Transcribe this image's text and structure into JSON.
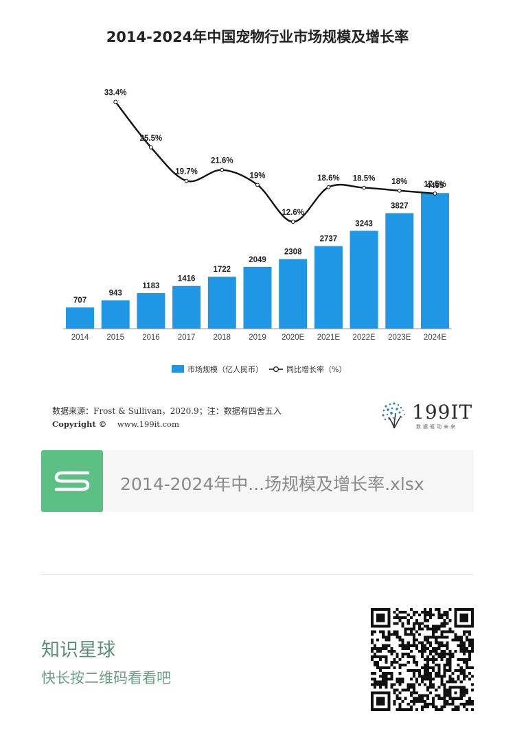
{
  "chart_data": {
    "type": "bar",
    "title": "2014-2024年中国宠物行业市场规模及增长率",
    "categories": [
      "2014",
      "2015",
      "2016",
      "2017",
      "2018",
      "2019",
      "2020E",
      "2021E",
      "2022E",
      "2023E",
      "2024E"
    ],
    "series": [
      {
        "name": "市场规模（亿人民币）",
        "type": "bar",
        "values": [
          707,
          943,
          1183,
          1416,
          1722,
          2049,
          2308,
          2737,
          3243,
          3827,
          4495
        ],
        "color": "#1f97e4"
      },
      {
        "name": "同比增长率（%）",
        "type": "line",
        "values": [
          null,
          33.4,
          25.5,
          19.7,
          21.6,
          19,
          12.6,
          18.6,
          18.5,
          18,
          17.5
        ],
        "color": "#111111"
      }
    ],
    "bar_labels": [
      "707",
      "943",
      "1183",
      "1416",
      "1722",
      "2049",
      "2308",
      "2737",
      "3243",
      "3827",
      "4495"
    ],
    "line_labels": [
      "",
      "33.4%",
      "25.5%",
      "19.7%",
      "21.6%",
      "19%",
      "12.6%",
      "18.6%",
      "18.5%",
      "18%",
      "17.5%"
    ],
    "bar_ylim": [
      0,
      5000
    ],
    "line_ylim": [
      10,
      35
    ],
    "legend_position": "bottom",
    "grid": false
  },
  "source": {
    "text": "数据来源：Frost & Sullivan，2020.9；注：数据有四舍五入",
    "copyright_label": "Copyright ©",
    "website": "www.199it.com"
  },
  "logo": {
    "text": "199IT",
    "tagline": "数据驱动未来"
  },
  "file": {
    "name": "2014-2024年中...场规模及增长率.xlsx",
    "icon": "spreadsheet-s-icon",
    "icon_color": "#5cbf84"
  },
  "planet": {
    "name": "知识星球",
    "hint": "快长按二维码看看吧"
  },
  "colors": {
    "bar": "#1f97e4",
    "line": "#111111",
    "accent_green": "#5a8f73"
  }
}
